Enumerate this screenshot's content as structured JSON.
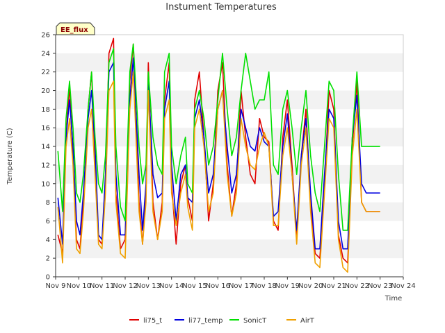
{
  "chart_data": {
    "type": "line",
    "title": "Instument Temperatures",
    "xlabel": "Time",
    "ylabel": "Temperature (C)",
    "annotation": "EE_flux",
    "ylim": [
      0,
      26
    ],
    "yticks": [
      0,
      2,
      4,
      6,
      8,
      10,
      12,
      14,
      16,
      18,
      20,
      22,
      24,
      26
    ],
    "xlim": [
      9,
      24
    ],
    "xticks": [
      {
        "v": 9,
        "label": "Nov 9"
      },
      {
        "v": 10,
        "label": "Nov 10"
      },
      {
        "v": 11,
        "label": "Nov 11"
      },
      {
        "v": 12,
        "label": "Nov 12"
      },
      {
        "v": 13,
        "label": "Nov 13"
      },
      {
        "v": 14,
        "label": "Nov 14"
      },
      {
        "v": 15,
        "label": "Nov 15"
      },
      {
        "v": 16,
        "label": "Nov 16"
      },
      {
        "v": 17,
        "label": "Nov 17"
      },
      {
        "v": 18,
        "label": "Nov 18"
      },
      {
        "v": 19,
        "label": "Nov 19"
      },
      {
        "v": 20,
        "label": "Nov 20"
      },
      {
        "v": 21,
        "label": "Nov 21"
      },
      {
        "v": 22,
        "label": "Nov 22"
      },
      {
        "v": 23,
        "label": "Nov 23"
      },
      {
        "v": 24,
        "label": "Nov 24"
      }
    ],
    "grid": "horizontal bands",
    "legend_position": "bottom",
    "series": [
      {
        "name": "li75_t",
        "color": "#e00000",
        "x": [
          9.1,
          9.3,
          9.45,
          9.6,
          9.75,
          9.9,
          10.05,
          10.2,
          10.4,
          10.55,
          10.7,
          10.85,
          11.0,
          11.15,
          11.3,
          11.5,
          11.6,
          11.8,
          12.0,
          12.2,
          12.35,
          12.6,
          12.75,
          12.9,
          13.0,
          13.2,
          13.4,
          13.6,
          13.7,
          13.9,
          14.0,
          14.2,
          14.4,
          14.6,
          14.7,
          14.9,
          15.0,
          15.2,
          15.4,
          15.6,
          15.8,
          16.0,
          16.2,
          16.4,
          16.6,
          16.8,
          17.0,
          17.2,
          17.4,
          17.6,
          17.8,
          18.0,
          18.2,
          18.4,
          18.6,
          18.8,
          19.0,
          19.2,
          19.4,
          19.6,
          19.8,
          20.0,
          20.2,
          20.4,
          20.6,
          20.8,
          21.0,
          21.2,
          21.4,
          21.6,
          21.8,
          22.0,
          22.2,
          22.4,
          22.6,
          22.8,
          23.0
        ],
        "values": [
          4.5,
          2.5,
          15,
          20.5,
          13,
          4,
          3,
          8,
          18,
          22,
          12,
          4,
          3.5,
          10,
          24,
          25.6,
          9,
          3,
          4,
          21,
          25,
          8,
          3.5,
          9,
          23,
          8,
          4,
          8,
          19,
          23,
          10,
          3.5,
          10,
          12,
          8.5,
          6,
          19,
          22,
          15,
          6,
          10,
          20,
          23,
          12,
          6.5,
          10,
          20,
          15,
          11,
          10,
          17,
          15,
          14.5,
          6,
          5,
          15,
          19,
          12,
          4,
          13,
          18,
          8,
          2.5,
          2,
          10,
          20,
          18,
          4.5,
          2,
          1.5,
          14,
          21,
          8,
          7,
          7,
          7,
          7
        ]
      },
      {
        "name": "li77_temp",
        "color": "#0000e0",
        "x": [
          9.1,
          9.3,
          9.45,
          9.6,
          9.75,
          9.9,
          10.05,
          10.2,
          10.4,
          10.55,
          10.7,
          10.85,
          11.0,
          11.15,
          11.3,
          11.5,
          11.6,
          11.8,
          12.0,
          12.2,
          12.35,
          12.6,
          12.75,
          12.9,
          13.0,
          13.2,
          13.4,
          13.6,
          13.7,
          13.9,
          14.0,
          14.2,
          14.4,
          14.6,
          14.7,
          14.9,
          15.0,
          15.2,
          15.4,
          15.6,
          15.8,
          16.0,
          16.2,
          16.4,
          16.6,
          16.8,
          17.0,
          17.2,
          17.4,
          17.6,
          17.8,
          18.0,
          18.2,
          18.4,
          18.6,
          18.8,
          19.0,
          19.2,
          19.4,
          19.6,
          19.8,
          20.0,
          20.2,
          20.4,
          20.6,
          20.8,
          21.0,
          21.2,
          21.4,
          21.6,
          21.8,
          22.0,
          22.2,
          22.4,
          22.6,
          22.8,
          23.0
        ],
        "values": [
          8.5,
          3.5,
          15,
          19,
          14,
          6,
          4.5,
          9,
          17,
          20,
          14,
          4.5,
          4,
          11,
          22,
          23,
          11,
          4.5,
          4.5,
          19,
          23.5,
          11,
          5,
          10,
          21,
          11,
          8.5,
          9,
          18,
          21,
          12,
          6,
          11,
          12,
          8.5,
          8,
          17,
          19,
          15,
          9,
          11,
          18,
          20,
          14,
          9,
          11,
          18,
          16,
          14,
          13.5,
          16,
          14.5,
          14,
          6.5,
          7,
          14,
          17.5,
          11,
          5,
          13,
          17,
          9,
          3,
          3,
          11,
          18,
          17,
          6,
          3,
          3,
          15,
          19.5,
          10,
          9,
          9,
          9,
          9
        ]
      },
      {
        "name": "SonicT",
        "color": "#00e000",
        "x": [
          9.1,
          9.3,
          9.45,
          9.6,
          9.75,
          9.9,
          10.05,
          10.2,
          10.4,
          10.55,
          10.7,
          10.85,
          11.0,
          11.15,
          11.3,
          11.5,
          11.6,
          11.8,
          12.0,
          12.2,
          12.35,
          12.6,
          12.75,
          12.9,
          13.0,
          13.2,
          13.4,
          13.6,
          13.7,
          13.9,
          14.0,
          14.2,
          14.4,
          14.6,
          14.7,
          14.9,
          15.0,
          15.2,
          15.4,
          15.6,
          15.8,
          16.0,
          16.2,
          16.4,
          16.6,
          16.8,
          17.0,
          17.2,
          17.4,
          17.6,
          17.8,
          18.0,
          18.2,
          18.4,
          18.6,
          18.8,
          19.0,
          19.2,
          19.4,
          19.6,
          19.8,
          20.0,
          20.2,
          20.4,
          20.6,
          20.8,
          21.0,
          21.2,
          21.4,
          21.6,
          21.8,
          22.0,
          22.2,
          22.4,
          22.6,
          22.8,
          23.0
        ],
        "values": [
          13.5,
          7,
          17,
          21,
          16,
          9,
          8,
          11,
          18,
          22,
          15,
          10,
          9,
          13,
          23,
          24.5,
          14,
          7.5,
          6,
          22,
          25,
          14,
          10,
          12,
          22,
          15,
          12,
          11,
          22,
          24,
          14,
          10,
          13,
          15,
          10,
          9,
          18,
          20,
          17,
          12,
          14,
          19,
          24,
          18,
          13,
          15,
          20,
          24,
          21,
          18,
          19,
          19,
          22,
          12,
          11,
          18,
          20,
          16,
          11,
          16,
          20,
          13,
          9,
          7,
          14,
          21,
          20,
          11,
          5,
          5,
          15,
          22,
          14,
          14,
          14,
          14,
          14
        ]
      },
      {
        "name": "AirT",
        "color": "#f0a000",
        "x": [
          9.1,
          9.3,
          9.45,
          9.6,
          9.75,
          9.9,
          10.05,
          10.2,
          10.4,
          10.55,
          10.7,
          10.85,
          11.0,
          11.15,
          11.3,
          11.5,
          11.6,
          11.8,
          12.0,
          12.2,
          12.35,
          12.6,
          12.75,
          12.9,
          13.0,
          13.2,
          13.4,
          13.6,
          13.7,
          13.9,
          14.0,
          14.2,
          14.4,
          14.6,
          14.7,
          14.9,
          15.0,
          15.2,
          15.4,
          15.6,
          15.8,
          16.0,
          16.2,
          16.4,
          16.6,
          16.8,
          17.0,
          17.2,
          17.4,
          17.6,
          17.8,
          18.0,
          18.2,
          18.4,
          18.6,
          18.8,
          19.0,
          19.2,
          19.4,
          19.6,
          19.8,
          20.0,
          20.2,
          20.4,
          20.6,
          20.8,
          21.0,
          21.2,
          21.4,
          21.6,
          21.8,
          22.0,
          22.2,
          22.4,
          22.6,
          22.8,
          23.0
        ],
        "values": [
          7.5,
          1.5,
          14,
          17,
          12,
          3,
          2.5,
          7,
          16,
          18,
          11,
          3.5,
          3,
          9,
          20,
          21,
          8,
          2.5,
          2,
          18,
          22,
          7,
          3.5,
          8,
          20,
          7,
          4,
          7,
          17,
          19,
          9,
          5.5,
          9,
          11,
          7.5,
          5,
          16,
          18,
          14,
          7,
          9,
          18,
          20,
          11,
          6.5,
          9,
          17,
          14,
          12,
          11.5,
          14,
          15.5,
          14,
          5.5,
          5.5,
          13,
          16,
          11,
          3.5,
          12,
          16,
          7,
          1.5,
          1,
          9,
          17,
          16,
          4,
          1,
          0.5,
          13,
          18,
          8,
          7,
          7,
          7,
          7
        ]
      }
    ]
  }
}
